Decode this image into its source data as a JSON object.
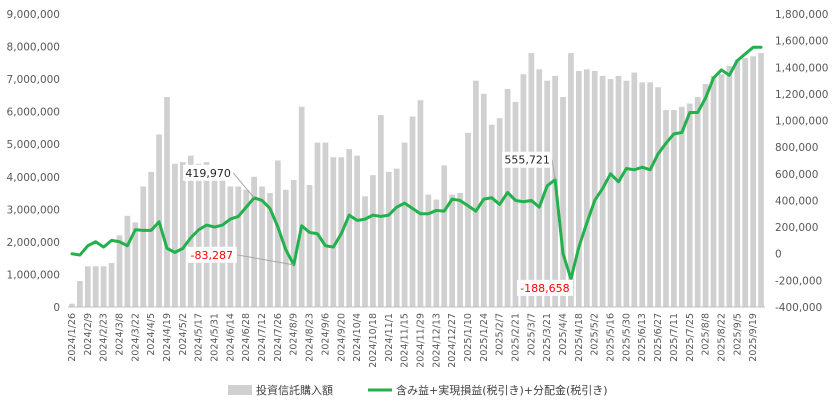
{
  "chart_data": {
    "type": "bar+line",
    "x_tick_labels": [
      "2024/1/26",
      "2024/2/9",
      "2024/2/23",
      "2024/3/8",
      "2024/3/22",
      "2024/4/5",
      "2024/4/19",
      "2024/5/2",
      "2024/5/17",
      "2024/5/31",
      "2024/6/14",
      "2024/6/28",
      "2024/7/12",
      "2024/7/26",
      "2024/8/9",
      "2024/8/23",
      "2024/9/6",
      "2024/9/20",
      "2024/10/4",
      "2024/10/18",
      "2024/11/1",
      "2024/11/15",
      "2024/11/29",
      "2024/12/13",
      "2024/12/27",
      "2025/1/10",
      "2025/1/24",
      "2025/2/7",
      "2025/2/21",
      "2025/3/7",
      "2025/3/21",
      "2025/4/4",
      "2025/4/18",
      "2025/5/2",
      "2025/5/16",
      "2025/5/30",
      "2025/6/13",
      "2025/6/27",
      "2025/7/11",
      "2025/7/25",
      "2025/8/8",
      "2025/8/22",
      "2025/9/5",
      "2025/9/19"
    ],
    "y_left": {
      "min": 0,
      "max": 9000000,
      "step": 1000000,
      "tick_labels": [
        "0",
        "1,000,000",
        "2,000,000",
        "3,000,000",
        "4,000,000",
        "5,000,000",
        "6,000,000",
        "7,000,000",
        "8,000,000",
        "9,000,000"
      ]
    },
    "y_right": {
      "min": -400000,
      "max": 1800000,
      "step": 200000,
      "tick_labels": [
        "-400,000",
        "-200,000",
        "0",
        "200,000",
        "400,000",
        "600,000",
        "800,000",
        "1,000,000",
        "1,200,000",
        "1,400,000",
        "1,600,000",
        "1,800,000"
      ]
    },
    "series": [
      {
        "name": "投資信託購入額",
        "type": "bar",
        "axis": "left",
        "color": "#d0d0d0",
        "values": [
          100000,
          800000,
          1250000,
          1250000,
          1250000,
          1350000,
          2200000,
          2800000,
          2600000,
          3700000,
          4150000,
          5300000,
          6450000,
          4400000,
          4450000,
          4650000,
          4400000,
          4450000,
          4300000,
          4250000,
          3700000,
          3700000,
          3600000,
          4000000,
          3700000,
          3500000,
          4500000,
          3600000,
          3900000,
          6150000,
          3750000,
          5050000,
          5050000,
          4600000,
          4600000,
          4850000,
          4650000,
          3400000,
          4050000,
          5900000,
          4150000,
          4250000,
          5050000,
          5850000,
          6350000,
          3450000,
          3300000,
          4350000,
          3450000,
          3500000,
          5350000,
          6950000,
          6550000,
          5600000,
          5800000,
          6700000,
          6300000,
          7150000,
          7800000,
          7300000,
          6950000,
          7100000,
          6450000,
          7800000,
          7250000,
          7300000,
          7250000,
          7100000,
          7000000,
          7100000,
          6950000,
          7200000,
          6900000,
          6900000,
          6750000,
          6050000,
          6050000,
          6150000,
          6250000,
          6450000,
          6850000,
          7100000,
          7150000,
          7400000,
          7600000,
          7650000,
          7700000,
          7800000
        ]
      },
      {
        "name": "含み益+実現損益(税引き)+分配金(税引き)",
        "type": "line",
        "axis": "right",
        "color": "#22b14c",
        "values": [
          0,
          -10000,
          60000,
          90000,
          50000,
          100000,
          90000,
          60000,
          180000,
          175000,
          175000,
          240000,
          40000,
          10000,
          40000,
          120000,
          180000,
          215000,
          200000,
          215000,
          260000,
          280000,
          350000,
          419970,
          400000,
          340000,
          200000,
          30000,
          -83287,
          210000,
          160000,
          150000,
          60000,
          50000,
          150000,
          290000,
          250000,
          260000,
          290000,
          280000,
          290000,
          350000,
          380000,
          340000,
          300000,
          300000,
          325000,
          320000,
          410000,
          400000,
          360000,
          320000,
          410000,
          420000,
          370000,
          460000,
          400000,
          390000,
          400000,
          350000,
          510000,
          555721,
          0,
          -188658,
          50000,
          230000,
          400000,
          490000,
          600000,
          540000,
          640000,
          630000,
          650000,
          630000,
          750000,
          830000,
          900000,
          910000,
          1060000,
          1060000,
          1170000,
          1320000,
          1380000,
          1340000,
          1450000,
          1500000,
          1550000,
          1550000
        ]
      }
    ],
    "annotations": [
      {
        "label": "419,970",
        "color": "#262626"
      },
      {
        "label": "-83,287",
        "color": "#ff0000"
      },
      {
        "label": "555,721",
        "color": "#262626"
      },
      {
        "label": "-188,658",
        "color": "#ff0000"
      }
    ],
    "legend": {
      "position": "bottom"
    },
    "grid": false
  }
}
